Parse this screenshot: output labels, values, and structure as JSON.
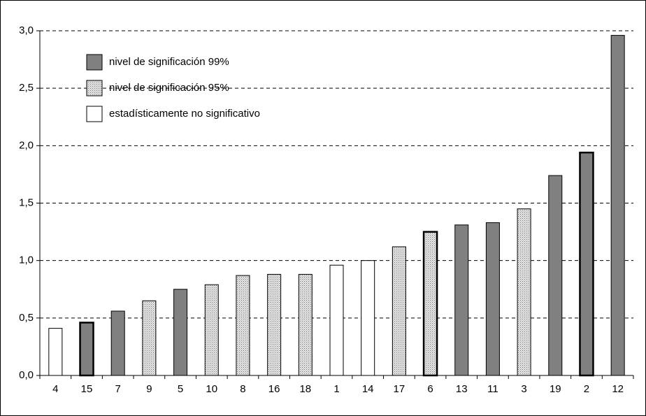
{
  "chart_data": {
    "type": "bar",
    "categories": [
      "4",
      "15",
      "7",
      "9",
      "5",
      "10",
      "8",
      "16",
      "18",
      "1",
      "14",
      "17",
      "6",
      "13",
      "11",
      "3",
      "19",
      "2",
      "12"
    ],
    "series": [
      {
        "name": "nivel de significación 99%",
        "color": "#808080",
        "values": [
          null,
          0.46,
          0.56,
          null,
          0.75,
          null,
          null,
          null,
          null,
          null,
          null,
          null,
          null,
          1.31,
          1.33,
          null,
          1.74,
          1.94,
          2.96
        ]
      },
      {
        "name": "nivel de significación 95%",
        "color": "#c4c4c4",
        "values": [
          null,
          null,
          null,
          0.65,
          null,
          0.79,
          0.87,
          0.88,
          0.88,
          null,
          null,
          1.12,
          1.25,
          null,
          null,
          1.45,
          null,
          null,
          null
        ]
      },
      {
        "name": "estadísticamente no significativo",
        "color": "#ffffff",
        "values": [
          0.41,
          null,
          null,
          null,
          null,
          null,
          null,
          null,
          null,
          0.96,
          1.0,
          null,
          null,
          null,
          null,
          null,
          null,
          null,
          null
        ]
      }
    ],
    "bold_outline": [
      false,
      true,
      false,
      false,
      false,
      false,
      false,
      false,
      false,
      false,
      false,
      false,
      true,
      false,
      false,
      false,
      false,
      true,
      false
    ],
    "ylim": [
      0,
      3
    ],
    "yticks": [
      {
        "value": 0,
        "label": "0,0"
      },
      {
        "value": 0.5,
        "label": "0,5"
      },
      {
        "value": 1,
        "label": "1,0"
      },
      {
        "value": 1.5,
        "label": "1,5"
      },
      {
        "value": 2,
        "label": "2,0"
      },
      {
        "value": 2.5,
        "label": "2,5"
      },
      {
        "value": 3,
        "label": "3,0"
      }
    ],
    "grid": true,
    "legend": "upper left"
  }
}
